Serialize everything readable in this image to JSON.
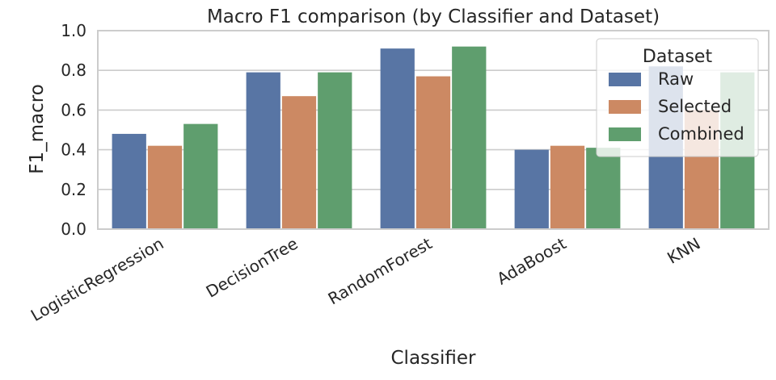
{
  "chart_data": {
    "type": "bar",
    "title": "Macro F1 comparison (by Classifier and Dataset)",
    "xlabel": "Classifier",
    "ylabel": "F1_macro",
    "ylim": [
      0,
      1.0
    ],
    "yticks": [
      "0.0",
      "0.2",
      "0.4",
      "0.6",
      "0.8",
      "1.0"
    ],
    "grid": true,
    "legend_placement": "top-right",
    "legend_title": "Dataset",
    "categories": [
      "LogisticRegression",
      "DecisionTree",
      "RandomForest",
      "AdaBoost",
      "KNN"
    ],
    "series": [
      {
        "name": "Raw",
        "color": "#5875a4",
        "values": [
          0.48,
          0.79,
          0.91,
          0.4,
          0.82
        ]
      },
      {
        "name": "Selected",
        "color": "#cc8963",
        "values": [
          0.42,
          0.67,
          0.77,
          0.42,
          0.6
        ]
      },
      {
        "name": "Combined",
        "color": "#5f9e6e",
        "values": [
          0.53,
          0.79,
          0.92,
          0.41,
          0.79
        ]
      }
    ]
  }
}
